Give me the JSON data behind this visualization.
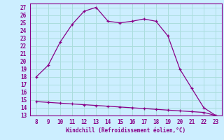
{
  "x_temp": [
    8,
    9,
    10,
    11,
    12,
    13,
    14,
    15,
    16,
    17,
    18,
    19,
    20,
    21,
    22,
    23
  ],
  "y_temp": [
    18,
    19.5,
    22.5,
    24.8,
    26.5,
    27,
    25.2,
    25,
    25.2,
    25.5,
    25.2,
    23.3,
    19,
    16.5,
    14,
    13
  ],
  "x_wind": [
    8,
    9,
    10,
    11,
    12,
    13,
    14,
    15,
    16,
    17,
    18,
    19,
    20,
    21,
    22,
    23
  ],
  "y_wind": [
    14.8,
    14.7,
    14.6,
    14.5,
    14.4,
    14.3,
    14.2,
    14.1,
    14.0,
    13.9,
    13.8,
    13.7,
    13.6,
    13.5,
    13.4,
    13.0
  ],
  "line_color": "#880088",
  "bg_color": "#cceeff",
  "grid_color": "#aadddd",
  "xlabel": "Windchill (Refroidissement éolien,°C)",
  "xlim": [
    7.5,
    23.5
  ],
  "ylim": [
    13,
    27.5
  ],
  "xticks": [
    8,
    9,
    10,
    11,
    12,
    13,
    14,
    15,
    16,
    17,
    18,
    19,
    20,
    21,
    22,
    23
  ],
  "yticks": [
    13,
    14,
    15,
    16,
    17,
    18,
    19,
    20,
    21,
    22,
    23,
    24,
    25,
    26,
    27
  ]
}
